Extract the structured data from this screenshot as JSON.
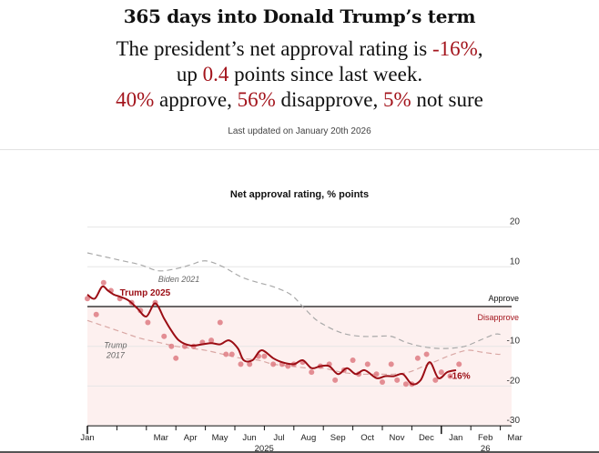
{
  "header": {
    "title": "365 days into Donald Trump’s term",
    "line1_pre": "The president’s net approval rating is ",
    "line1_val": "-16%",
    "line1_post": ",",
    "line2_pre": "up ",
    "line2_val": "0.4",
    "line2_post": " points since last week.",
    "approve_val": "40%",
    "approve_txt": " approve, ",
    "disapprove_val": "56%",
    "disapprove_txt": " disapprove, ",
    "notsure_val": "5%",
    "notsure_txt": " not sure",
    "updated": "Last updated on January 20th 2026"
  },
  "colors": {
    "accent": "#a3141c",
    "trump_line": "#9b0d14",
    "dots": "#de7b82",
    "disapprove_zone": "#fdf0ef",
    "comparison": "#a9a9a9",
    "trump2017": "#d9a7a4"
  },
  "chart_data": {
    "type": "line",
    "title": "Net approval rating, % points",
    "xlabel": "",
    "ylabel": "",
    "ylim": [
      -30,
      20
    ],
    "yticks": [
      20,
      10,
      -10,
      -20,
      -30
    ],
    "x_unit": "months since Jan 1 2025",
    "xticks": [
      {
        "x": 0,
        "label": "Jan"
      },
      {
        "x": 1,
        "label": ""
      },
      {
        "x": 2,
        "label": "Mar"
      },
      {
        "x": 3,
        "label": "Apr"
      },
      {
        "x": 4,
        "label": "May"
      },
      {
        "x": 5,
        "label": "Jun"
      },
      {
        "x": 6,
        "label": "Jul"
      },
      {
        "x": 7,
        "label": "Aug"
      },
      {
        "x": 8,
        "label": "Sep"
      },
      {
        "x": 9,
        "label": "Oct"
      },
      {
        "x": 10,
        "label": "Nov"
      },
      {
        "x": 11,
        "label": "Dec"
      },
      {
        "x": 12,
        "label": "Jan"
      },
      {
        "x": 13,
        "label": "Feb"
      },
      {
        "x": 14,
        "label": "Mar"
      }
    ],
    "year_labels": [
      {
        "x": 5.5,
        "label": "2025"
      },
      {
        "x": 13,
        "label": "26"
      }
    ],
    "zone_labels": {
      "approve": "Approve",
      "disapprove": "Disapprove"
    },
    "grid": true,
    "series": [
      {
        "name": "Trump 2025",
        "style": "solid",
        "x": [
          0,
          0.25,
          0.5,
          0.7,
          0.9,
          1.1,
          1.4,
          1.7,
          2.0,
          2.3,
          2.6,
          2.8,
          3.1,
          3.5,
          3.9,
          4.2,
          4.5,
          4.8,
          5.1,
          5.3,
          5.6,
          5.9,
          6.3,
          6.6,
          7.0,
          7.3,
          7.6,
          7.9,
          8.2,
          8.5,
          8.8,
          9.1,
          9.4,
          9.8,
          10.1,
          10.4,
          10.7,
          11.0,
          11.3,
          11.6,
          11.9,
          12.2,
          12.5
        ],
        "values": [
          3,
          2,
          5,
          4,
          3,
          2.5,
          1.5,
          -0.5,
          -2.5,
          0.8,
          -3,
          -5.5,
          -8.5,
          -9.8,
          -9.5,
          -9.2,
          -9.5,
          -8.5,
          -10.5,
          -13.5,
          -13.5,
          -11,
          -13,
          -14,
          -14.5,
          -13.5,
          -15.5,
          -15,
          -15,
          -17,
          -15.5,
          -17,
          -16,
          -18,
          -17.5,
          -17.5,
          -17,
          -19.5,
          -18.5,
          -14,
          -18,
          -16.5,
          -16
        ]
      },
      {
        "name": "Trump 2025 polls",
        "style": "dots",
        "x": [
          0,
          0.3,
          0.55,
          0.8,
          1.1,
          1.5,
          1.8,
          2.05,
          2.3,
          2.6,
          2.85,
          3.0,
          3.3,
          3.6,
          3.9,
          4.2,
          4.5,
          4.7,
          4.9,
          5.2,
          5.5,
          5.8,
          6.0,
          6.3,
          6.6,
          6.8,
          7.0,
          7.3,
          7.6,
          7.9,
          8.2,
          8.4,
          8.7,
          9.0,
          9.2,
          9.5,
          9.8,
          10.0,
          10.3,
          10.5,
          10.8,
          11.0,
          11.2,
          11.5,
          11.8,
          12.0,
          12.3,
          12.6
        ],
        "values": [
          2,
          -2,
          6,
          4,
          2,
          1,
          -1,
          -4,
          1,
          -7.5,
          -10,
          -13,
          -10,
          -10,
          -9,
          -8.5,
          -4,
          -12,
          -12,
          -14.5,
          -14.5,
          -12.5,
          -12.5,
          -14.5,
          -14.5,
          -15,
          -14.5,
          -14,
          -16.5,
          -15,
          -14.5,
          -18.5,
          -16,
          -13.5,
          -17,
          -14.5,
          -17,
          -19,
          -14.5,
          -18.5,
          -19.5,
          -19.5,
          -13,
          -12,
          -18.5,
          -16.5,
          -17.5,
          -14.5
        ]
      },
      {
        "name": "Biden 2021",
        "style": "dashed",
        "x": [
          0,
          0.6,
          1.2,
          1.8,
          2.4,
          3.0,
          3.5,
          4.0,
          4.6,
          5.2,
          5.8,
          6.3,
          6.9,
          7.3,
          7.7,
          8.0,
          8.4,
          8.8,
          9.3,
          9.8,
          10.3,
          10.8,
          11.3,
          11.8,
          12.3,
          12.8,
          13.3,
          13.8,
          14.0
        ],
        "values": [
          13.5,
          12.5,
          11.5,
          10.5,
          9.0,
          9.5,
          10.5,
          11.5,
          10.0,
          7.5,
          6.0,
          5.0,
          3.0,
          0.0,
          -3.0,
          -4.5,
          -6.0,
          -7.0,
          -7.5,
          -7.5,
          -7.5,
          -9.0,
          -10.0,
          -10.5,
          -10.5,
          -10.0,
          -8.5,
          -7.0,
          -7.0
        ]
      },
      {
        "name": "Trump 2017",
        "style": "dashed",
        "x": [
          0,
          0.6,
          1.2,
          1.8,
          2.4,
          3.0,
          3.5,
          4.0,
          4.6,
          5.2,
          5.8,
          6.3,
          6.9,
          7.5,
          8.0,
          8.6,
          9.2,
          9.8,
          10.4,
          10.9,
          11.4,
          11.9,
          12.4,
          12.9,
          13.4,
          13.9,
          14.0
        ],
        "values": [
          -3.5,
          -5.0,
          -6.5,
          -8.0,
          -9.0,
          -10.0,
          -10.5,
          -11.0,
          -12.0,
          -13.0,
          -13.5,
          -14.5,
          -15.0,
          -15.5,
          -15.5,
          -16.5,
          -17.0,
          -17.0,
          -17.0,
          -16.5,
          -15.0,
          -13.5,
          -12.0,
          -11.0,
          -11.5,
          -12.0,
          -12.0
        ]
      }
    ],
    "annotations": [
      {
        "text": "Trump 2025",
        "x": 1.1,
        "y": 3
      },
      {
        "text": "Biden 2021",
        "x": 2.4,
        "y": 7.5
      },
      {
        "text": "Trump\n2017",
        "x": 1.2,
        "y": -9.5
      },
      {
        "text": "-16%",
        "x": 11.1,
        "y": -18
      }
    ]
  }
}
